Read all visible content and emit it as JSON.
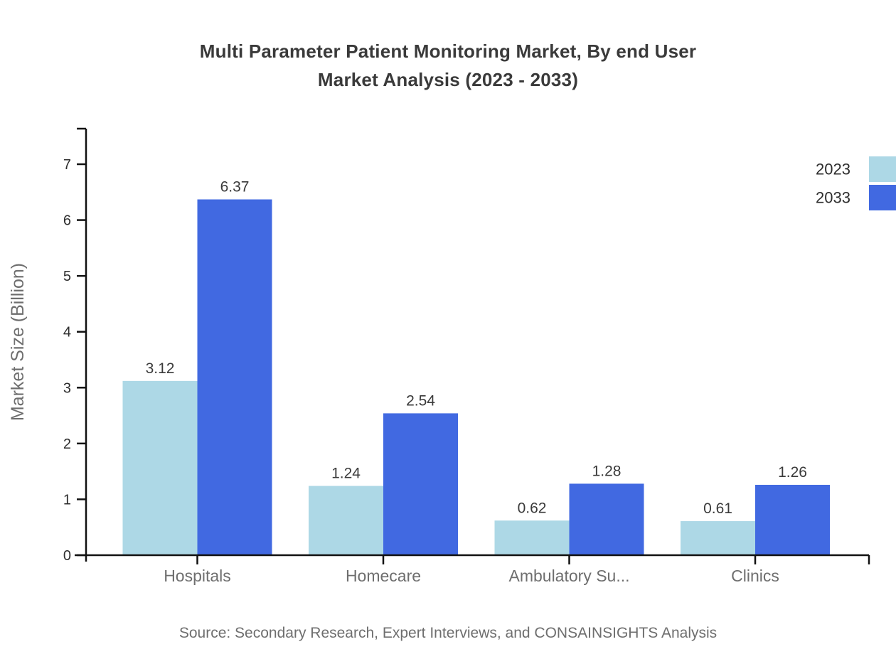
{
  "title": {
    "line1": "Multi Parameter Patient Monitoring Market, By end User",
    "line2": "Market Analysis (2023 - 2033)"
  },
  "source_note": "Source: Secondary Research, Expert Interviews, and CONSAINSIGHTS Analysis",
  "chart_data": {
    "type": "bar",
    "title": "Multi Parameter Patient Monitoring Market, By end User Market Analysis (2023 - 2033)",
    "categories": [
      "Hospitals",
      "Homecare",
      "Ambulatory Su...",
      "Clinics"
    ],
    "series": [
      {
        "name": "2023",
        "color": "#ADD8E6",
        "values": [
          3.12,
          1.24,
          0.62,
          0.61
        ]
      },
      {
        "name": "2033",
        "color": "#4169E1",
        "values": [
          6.37,
          2.54,
          1.28,
          1.26
        ]
      }
    ],
    "xlabel": "",
    "ylabel": "Market Size (Billion)",
    "ylim": [
      0,
      7.6
    ],
    "yticks": [
      0,
      1,
      2,
      3,
      4,
      5,
      6,
      7
    ],
    "grid": false,
    "legend_position": "top-right",
    "value_labels": true
  },
  "colors": {
    "series_2023": "#ADD8E6",
    "series_2033": "#4169E1",
    "title_text": "#3a3a3a",
    "axis": "#111111",
    "tick_label": "#2e2e2e",
    "category_label": "#6e6e6e",
    "value_label": "#3a3a3a",
    "muted_text": "#6e6e6e"
  }
}
